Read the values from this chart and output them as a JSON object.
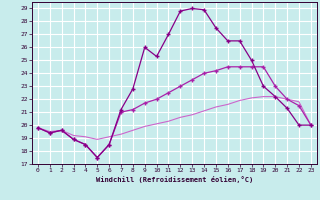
{
  "xlabel": "Windchill (Refroidissement éolien,°C)",
  "background_color": "#c8ecec",
  "grid_color": "#ffffff",
  "xlim": [
    -0.5,
    23.5
  ],
  "ylim": [
    17,
    29.5
  ],
  "yticks": [
    17,
    18,
    19,
    20,
    21,
    22,
    23,
    24,
    25,
    26,
    27,
    28,
    29
  ],
  "xticks": [
    0,
    1,
    2,
    3,
    4,
    5,
    6,
    7,
    8,
    9,
    10,
    11,
    12,
    13,
    14,
    15,
    16,
    17,
    18,
    19,
    20,
    21,
    22,
    23
  ],
  "line1_color": "#880088",
  "line2_color": "#aa22aa",
  "line3_color": "#cc66cc",
  "line1_x": [
    0,
    1,
    2,
    3,
    4,
    5,
    6,
    7,
    8,
    9,
    10,
    11,
    12,
    13,
    14,
    15,
    16,
    17,
    18,
    19,
    20,
    21,
    22,
    23
  ],
  "line1_y": [
    19.8,
    19.4,
    19.6,
    18.9,
    18.5,
    17.5,
    18.5,
    21.2,
    22.8,
    26.0,
    25.3,
    27.0,
    28.8,
    29.0,
    28.9,
    27.5,
    26.5,
    26.5,
    25.0,
    23.0,
    22.2,
    21.3,
    20.0,
    20.0
  ],
  "line2_x": [
    0,
    1,
    2,
    3,
    4,
    5,
    6,
    7,
    8,
    9,
    10,
    11,
    12,
    13,
    14,
    15,
    16,
    17,
    18,
    19,
    20,
    21,
    22,
    23
  ],
  "line2_y": [
    19.8,
    19.4,
    19.6,
    18.9,
    18.5,
    17.5,
    18.5,
    21.0,
    21.2,
    21.7,
    22.0,
    22.5,
    23.0,
    23.5,
    24.0,
    24.2,
    24.5,
    24.5,
    24.5,
    24.5,
    23.0,
    22.0,
    21.5,
    20.0
  ],
  "line3_x": [
    0,
    1,
    2,
    3,
    4,
    5,
    6,
    7,
    8,
    9,
    10,
    11,
    12,
    13,
    14,
    15,
    16,
    17,
    18,
    19,
    20,
    21,
    22,
    23
  ],
  "line3_y": [
    19.8,
    19.5,
    19.6,
    19.2,
    19.1,
    18.9,
    19.1,
    19.3,
    19.6,
    19.9,
    20.1,
    20.3,
    20.6,
    20.8,
    21.1,
    21.4,
    21.6,
    21.9,
    22.1,
    22.2,
    22.2,
    22.0,
    21.8,
    20.0
  ]
}
